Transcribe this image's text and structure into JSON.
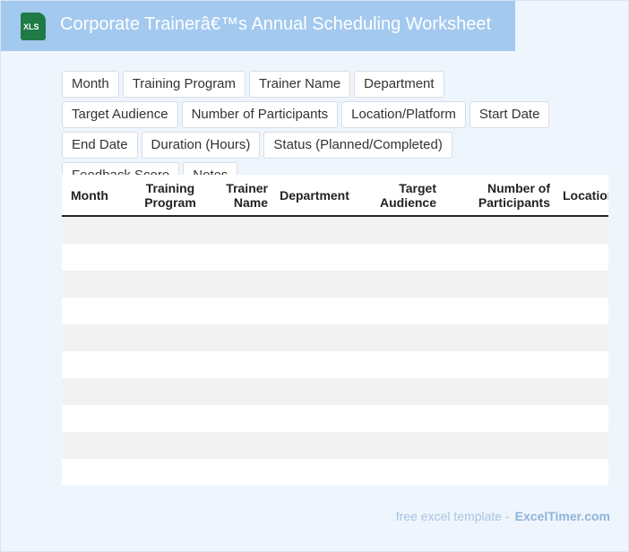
{
  "header": {
    "icon_label": "XLS",
    "title": "Corporate Trainerâ€™s Annual Scheduling Worksheet"
  },
  "tags": [
    "Month",
    "Training Program",
    "Trainer Name",
    "Department",
    "Target Audience",
    "Number of Participants",
    "Location/Platform",
    "Start Date",
    "End Date",
    "Duration (Hours)",
    "Status (Planned/Completed)",
    "Feedback Score",
    "Notes"
  ],
  "table": {
    "columns": [
      "Month",
      "Training Program",
      "Trainer Name",
      "Department",
      "Target Audience",
      "Number of Participants",
      "Location"
    ]
  },
  "footer": {
    "text": "free excel template -",
    "site": "ExcelTimer.com"
  }
}
